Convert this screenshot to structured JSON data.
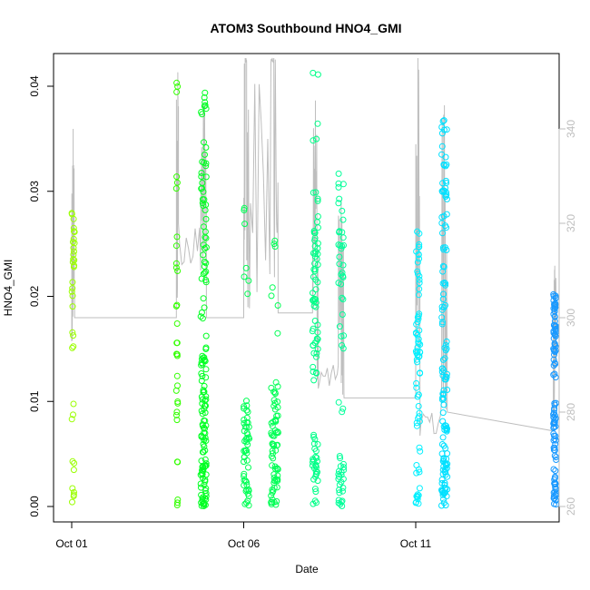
{
  "chart_data": {
    "type": "scatter",
    "title": "ATOM3 Southbound HNO4_GMI",
    "xlabel": "Date",
    "ylabel": "HNO4_GMI",
    "x_is_date": true,
    "xlim": [
      "2016-09-30T12:00",
      "2016-10-15T18:00"
    ],
    "ylim": [
      0,
      0.042
    ],
    "x_ticks": [
      "Oct 01",
      "Oct 06",
      "Oct 11"
    ],
    "x_tick_values": [
      "2016-10-01",
      "2016-10-06",
      "2016-10-11"
    ],
    "y_ticks": [
      0.0,
      0.01,
      0.02,
      0.03,
      0.04
    ],
    "y2_ticks": [
      260,
      280,
      300,
      320,
      340
    ],
    "y2lim": [
      258,
      362
    ],
    "grid": false,
    "legend": "none",
    "colors": {
      "flight1": "#9aff00",
      "flight2": "#33ff00",
      "flight3": "#00ff22",
      "flight4": "#00ff55",
      "flight5": "#00ff88",
      "flight6": "#00ff99",
      "flight7": "#00ffcc",
      "flight8": "#00f0ff",
      "flight9": "#00e0ff",
      "flight10": "#1a99ff",
      "secondary_line": "#bebebe"
    },
    "series": [
      {
        "color_key": "flight1",
        "start": "2016-10-01T00:00",
        "end": "2016-10-01T02:00",
        "clusters": [
          [
            0.0,
            0.005,
            8
          ],
          [
            0.0075,
            0.01,
            3
          ],
          [
            0.015,
            0.017,
            4
          ],
          [
            0.019,
            0.028,
            22
          ]
        ]
      },
      {
        "color_key": "flight2",
        "start": "2016-10-04T01:00",
        "end": "2016-10-04T02:00",
        "clusters": [
          [
            0.0,
            0.001,
            3
          ],
          [
            0.004,
            0.0045,
            2
          ],
          [
            0.008,
            0.0125,
            8
          ],
          [
            0.014,
            0.02,
            8
          ],
          [
            0.022,
            0.026,
            5
          ],
          [
            0.03,
            0.032,
            3
          ],
          [
            0.038,
            0.041,
            3
          ]
        ]
      },
      {
        "color_key": "flight3",
        "start": "2016-10-04T18:00",
        "end": "2016-10-04T22:00",
        "clusters": [
          [
            0.0,
            0.008,
            60
          ],
          [
            0.008,
            0.015,
            35
          ],
          [
            0.015,
            0.025,
            20
          ],
          [
            0.025,
            0.035,
            25
          ],
          [
            0.037,
            0.041,
            8
          ]
        ]
      },
      {
        "color_key": "flight4",
        "start": "2016-10-06T00:00",
        "end": "2016-10-06T04:00",
        "clusters": [
          [
            0.0,
            0.009,
            45
          ],
          [
            0.009,
            0.014,
            6
          ],
          [
            0.019,
            0.024,
            4
          ],
          [
            0.026,
            0.029,
            3
          ]
        ]
      },
      {
        "color_key": "flight4",
        "start": "2016-10-06T19:00",
        "end": "2016-10-07T00:00",
        "clusters": [
          [
            0.0,
            0.009,
            55
          ],
          [
            0.009,
            0.012,
            12
          ],
          [
            0.016,
            0.021,
            4
          ],
          [
            0.024,
            0.026,
            3
          ]
        ]
      },
      {
        "color_key": "flight5",
        "start": "2016-10-08T00:00",
        "end": "2016-10-08T04:00",
        "clusters": [
          [
            0.0,
            0.007,
            30
          ],
          [
            0.012,
            0.021,
            30
          ],
          [
            0.021,
            0.028,
            25
          ],
          [
            0.029,
            0.03,
            4
          ],
          [
            0.034,
            0.037,
            3
          ],
          [
            0.041,
            0.0415,
            2
          ]
        ]
      },
      {
        "color_key": "flight6",
        "start": "2016-10-08T18:00",
        "end": "2016-10-08T22:00",
        "clusters": [
          [
            0.0,
            0.005,
            25
          ],
          [
            0.009,
            0.01,
            3
          ],
          [
            0.015,
            0.02,
            8
          ],
          [
            0.021,
            0.026,
            15
          ],
          [
            0.026,
            0.032,
            12
          ]
        ]
      },
      {
        "color_key": "flight8",
        "start": "2016-10-11T00:00",
        "end": "2016-10-11T03:00",
        "clusters": [
          [
            0.0,
            0.002,
            10
          ],
          [
            0.003,
            0.009,
            12
          ],
          [
            0.009,
            0.014,
            10
          ],
          [
            0.014,
            0.018,
            20
          ],
          [
            0.018,
            0.027,
            20
          ]
        ]
      },
      {
        "color_key": "flight9",
        "start": "2016-10-11T18:00",
        "end": "2016-10-11T22:00",
        "clusters": [
          [
            0.0,
            0.005,
            40
          ],
          [
            0.005,
            0.012,
            25
          ],
          [
            0.012,
            0.02,
            25
          ],
          [
            0.02,
            0.03,
            25
          ],
          [
            0.03,
            0.037,
            20
          ]
        ]
      },
      {
        "color_key": "flight10",
        "start": "2016-10-15T00:00",
        "end": "2016-10-15T02:00",
        "clusters": [
          [
            0.0,
            0.002,
            15
          ],
          [
            0.002,
            0.007,
            25
          ],
          [
            0.007,
            0.01,
            20
          ],
          [
            0.012,
            0.018,
            35
          ],
          [
            0.018,
            0.0205,
            20
          ]
        ]
      }
    ],
    "secondary": {
      "label": "",
      "points": [
        [
          "2016-10-01T00:00",
          295
        ],
        [
          "2016-10-01T01:00",
          340
        ],
        [
          "2016-10-01T02:00",
          300
        ],
        [
          "2016-10-04T01:00",
          300
        ],
        [
          "2016-10-04T02:00",
          352
        ],
        [
          "2016-10-04T02:30",
          320
        ],
        [
          "2016-10-04T18:00",
          310
        ],
        [
          "2016-10-04T20:00",
          345
        ],
        [
          "2016-10-04T22:00",
          300
        ],
        [
          "2016-10-06T00:00",
          300
        ],
        [
          "2016-10-06T01:00",
          355
        ],
        [
          "2016-10-06T02:00",
          354
        ],
        [
          "2016-10-06T04:00",
          302
        ],
        [
          "2016-10-06T19:00",
          354
        ],
        [
          "2016-10-06T21:00",
          355
        ],
        [
          "2016-10-07T00:00",
          301
        ],
        [
          "2016-10-08T00:00",
          301
        ],
        [
          "2016-10-08T02:00",
          346
        ],
        [
          "2016-10-08T04:00",
          285
        ],
        [
          "2016-10-08T18:00",
          290
        ],
        [
          "2016-10-08T20:00",
          325
        ],
        [
          "2016-10-08T22:00",
          283
        ],
        [
          "2016-10-11T00:00",
          283
        ],
        [
          "2016-10-11T01:30",
          355
        ],
        [
          "2016-10-11T03:00",
          275
        ],
        [
          "2016-10-11T18:00",
          282
        ],
        [
          "2016-10-11T20:00",
          345
        ],
        [
          "2016-10-11T22:00",
          280
        ],
        [
          "2016-10-15T00:00",
          276
        ],
        [
          "2016-10-15T01:00",
          311
        ],
        [
          "2016-10-15T02:00",
          290
        ]
      ]
    }
  }
}
